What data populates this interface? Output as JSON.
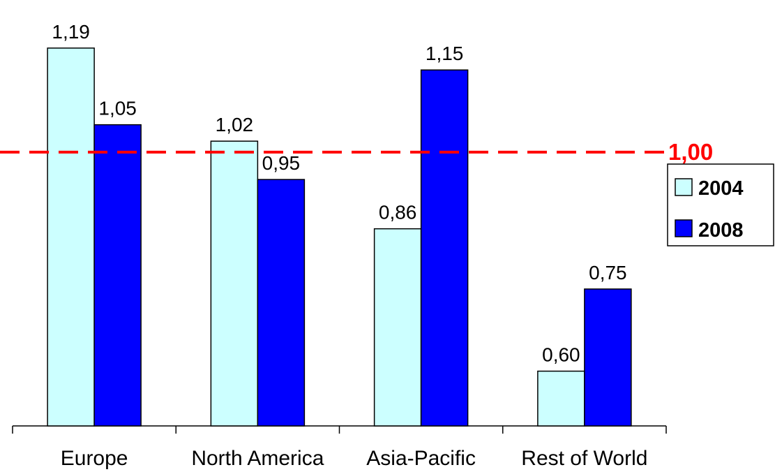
{
  "chart_data": {
    "type": "bar",
    "categories": [
      "Europe",
      "North America",
      "Asia-Pacific",
      "Rest of World"
    ],
    "series": [
      {
        "name": "2004",
        "color": "#ccffff",
        "values": [
          1.19,
          1.02,
          0.86,
          0.6
        ],
        "labels": [
          "1,19",
          "1,02",
          "0,86",
          "0,60"
        ]
      },
      {
        "name": "2008",
        "color": "#0000ff",
        "values": [
          1.05,
          0.95,
          1.15,
          0.75
        ],
        "labels": [
          "1,05",
          "0,95",
          "1,15",
          "0,75"
        ]
      }
    ],
    "reference_line": {
      "value": 1.0,
      "label": "1,00",
      "color": "#ff0000",
      "style": "dashed"
    },
    "ylim": [
      0.5,
      1.2
    ],
    "grid": false,
    "legend": {
      "placement": "right"
    },
    "title": "",
    "xlabel": "",
    "ylabel": ""
  }
}
